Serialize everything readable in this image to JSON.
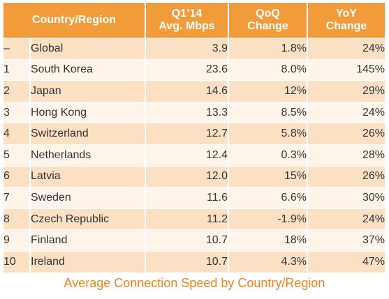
{
  "header": {
    "col_country": "Country/Region",
    "col_speed": "Q1’14\nAvg. Mbps",
    "col_speed_l1": "Q1’14",
    "col_speed_l2": "Avg. Mbps",
    "col_qoq_l1": "QoQ",
    "col_qoq_l2": "Change",
    "col_yoy_l1": "YoY",
    "col_yoy_l2": "Change"
  },
  "rows": [
    {
      "rank": "–",
      "name": "Global",
      "speed": "3.9",
      "qoq": "1.8%",
      "yoy": "24%"
    },
    {
      "rank": "1",
      "name": "South Korea",
      "speed": "23.6",
      "qoq": "8.0%",
      "yoy": "145%"
    },
    {
      "rank": "2",
      "name": "Japan",
      "speed": "14.6",
      "qoq": "12%",
      "yoy": "29%"
    },
    {
      "rank": "3",
      "name": "Hong Kong",
      "speed": "13.3",
      "qoq": "8.5%",
      "yoy": "24%"
    },
    {
      "rank": "4",
      "name": "Switzerland",
      "speed": "12.7",
      "qoq": "5.8%",
      "yoy": "26%"
    },
    {
      "rank": "5",
      "name": "Netherlands",
      "speed": "12.4",
      "qoq": "0.3%",
      "yoy": "28%"
    },
    {
      "rank": "6",
      "name": "Latvia",
      "speed": "12.0",
      "qoq": "15%",
      "yoy": "26%"
    },
    {
      "rank": "7",
      "name": "Sweden",
      "speed": "11.6",
      "qoq": "6.6%",
      "yoy": "30%"
    },
    {
      "rank": "8",
      "name": "Czech Republic",
      "speed": "11.2",
      "qoq": "-1.9%",
      "yoy": "24%"
    },
    {
      "rank": "9",
      "name": "Finland",
      "speed": "10.7",
      "qoq": "18%",
      "yoy": "37%"
    },
    {
      "rank": "10",
      "name": "Ireland",
      "speed": "10.7",
      "qoq": "4.3%",
      "yoy": "47%"
    }
  ],
  "caption": "Average Connection Speed by Country/Region",
  "colors": {
    "header_bg": "#f29b3b",
    "row_dark": "#fbe0c4",
    "row_light": "#fef4e9",
    "caption": "#f0821e"
  }
}
